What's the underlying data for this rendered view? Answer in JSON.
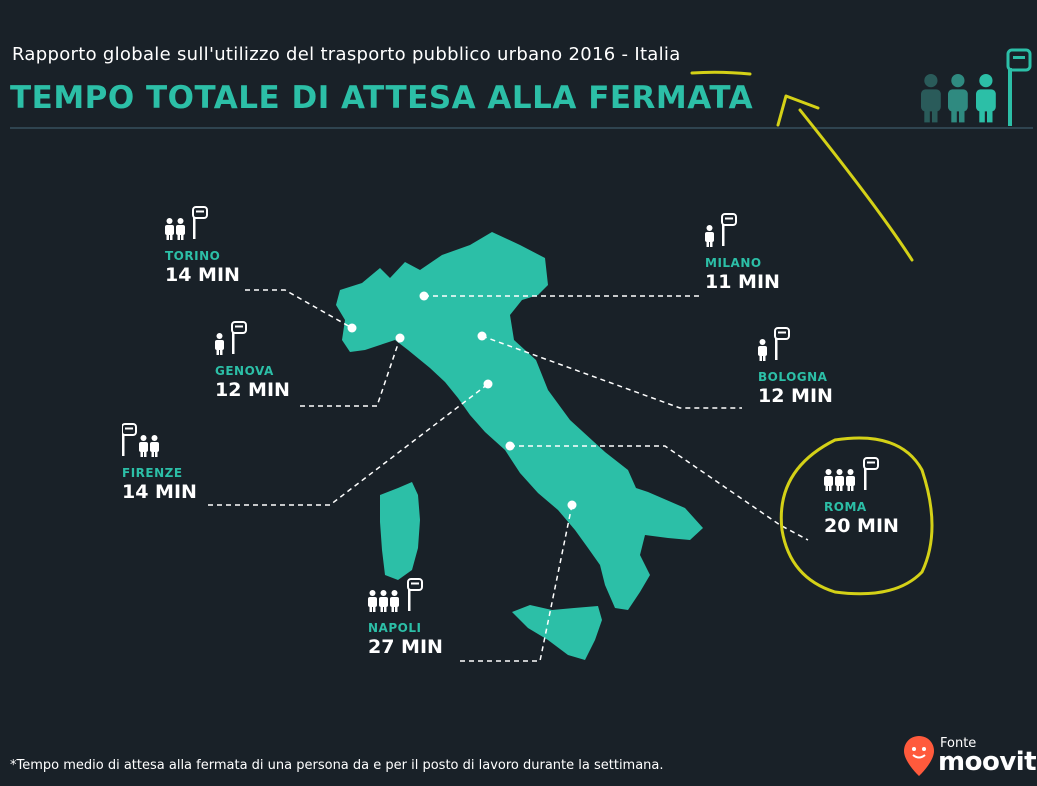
{
  "header": {
    "subtitle_prefix": "Rapporto globale sull'utilizzo del trasporto pubblico urbano ",
    "year": "2016",
    "subtitle_suffix": " - Italia",
    "title": "TEMPO TOTALE DI ATTESA ALLA FERMATA"
  },
  "cities": [
    {
      "name": "TORINO",
      "time": "14 MIN",
      "people": 2
    },
    {
      "name": "MILANO",
      "time": "11 MIN",
      "people": 1
    },
    {
      "name": "GENOVA",
      "time": "12 MIN",
      "people": 1
    },
    {
      "name": "BOLOGNA",
      "time": "12 MIN",
      "people": 1
    },
    {
      "name": "FIRENZE",
      "time": "14 MIN",
      "people": 2
    },
    {
      "name": "ROMA",
      "time": "20 MIN",
      "people": 3
    },
    {
      "name": "NAPOLI",
      "time": "27 MIN",
      "people": 3
    }
  ],
  "footnote": "*Tempo medio di attesa alla fermata di una persona da e per il posto di lavoro durante la settimana.",
  "brand": {
    "source_label": "Fonte",
    "name": "moovit"
  },
  "colors": {
    "background": "#192128",
    "accent": "#2cbfa7",
    "annotation": "#d4d117",
    "text": "#ffffff"
  },
  "icons": [
    "person-icon",
    "bus-stop-sign-icon",
    "moovit-logo-icon"
  ]
}
